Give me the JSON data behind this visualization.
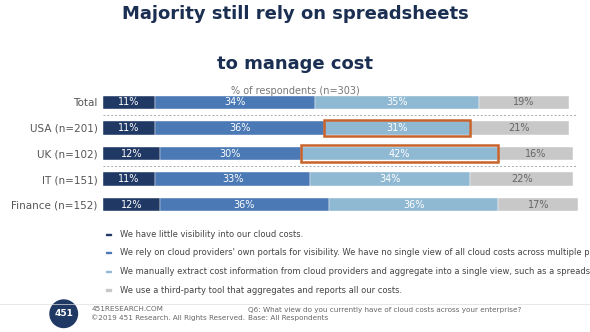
{
  "title_line1": "Majority still rely on spreadsheets",
  "title_line2": "to manage cost",
  "subtitle": "% of respondents (n=303)",
  "categories": [
    "Total",
    "USA (n=201)",
    "UK (n=102)",
    "IT (n=151)",
    "Finance (n=152)"
  ],
  "values": [
    [
      11,
      34,
      35,
      19
    ],
    [
      11,
      36,
      31,
      21
    ],
    [
      12,
      30,
      42,
      16
    ],
    [
      11,
      33,
      34,
      22
    ],
    [
      12,
      36,
      36,
      17
    ]
  ],
  "labels": [
    [
      "11%",
      "34%",
      "35%",
      "19%"
    ],
    [
      "11%",
      "36%",
      "31%",
      "21%"
    ],
    [
      "12%",
      "30%",
      "42%",
      "16%"
    ],
    [
      "11%",
      "33%",
      "34%",
      "22%"
    ],
    [
      "12%",
      "36%",
      "36%",
      "17%"
    ]
  ],
  "colors": [
    "#1f3864",
    "#4a79b5",
    "#8fb8d3",
    "#c8c8c8"
  ],
  "legend_labels": [
    "We have little visibility into our cloud costs.",
    "We rely on cloud providers' own portals for visibility. We have no single view of all cloud costs across multiple providers.",
    "We manually extract cost information from cloud providers and aggregate into a single view, such as a spreadsheet.",
    "We use a third-party tool that aggregates and reports all our costs."
  ],
  "highlight_rows": [
    1,
    2
  ],
  "highlight_color": "#c8622b",
  "separator_after": [
    0,
    2
  ],
  "background_color": "#ffffff",
  "bar_height": 0.52,
  "title_fontsize": 13,
  "subtitle_fontsize": 7,
  "label_fontsize": 7,
  "legend_fontsize": 6,
  "ylabel_fontsize": 7.5,
  "footer_left": "451RESEARCH.COM\n©2019 451 Research. All Rights Reserved.",
  "footer_right": "Q6: What view do you currently have of cloud costs across your enterprise?\nBase: All Respondents"
}
